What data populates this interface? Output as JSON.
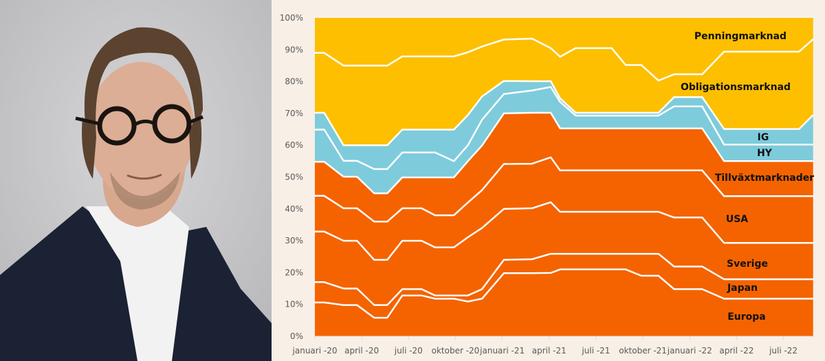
{
  "photo": {
    "alt": "portrait"
  },
  "chart_data": {
    "type": "area",
    "stacked": true,
    "title": "",
    "xlabel": "",
    "ylabel": "",
    "ylim": [
      0,
      100
    ],
    "y_ticks": [
      "0%",
      "10%",
      "20%",
      "30%",
      "40%",
      "50%",
      "60%",
      "70%",
      "80%",
      "90%",
      "100%"
    ],
    "x_ticks": [
      {
        "date": "2020-01-01",
        "label": "januari -20"
      },
      {
        "date": "2020-04-01",
        "label": "april -20"
      },
      {
        "date": "2020-07-01",
        "label": "juli -20"
      },
      {
        "date": "2020-10-01",
        "label": "oktober -20"
      },
      {
        "date": "2021-01-01",
        "label": "januari -21"
      },
      {
        "date": "2021-04-01",
        "label": "april -21"
      },
      {
        "date": "2021-07-01",
        "label": "juli -21"
      },
      {
        "date": "2021-10-01",
        "label": "oktober -21"
      },
      {
        "date": "2022-01-01",
        "label": "januari -22"
      },
      {
        "date": "2022-04-01",
        "label": "april -22"
      },
      {
        "date": "2022-07-01",
        "label": "juli -22"
      }
    ],
    "x_range": [
      "2020-01-01",
      "2022-09-01"
    ],
    "grid": false,
    "legend": "inline labels on right",
    "x": [
      "2020-01-01",
      "2020-01-19",
      "2020-02-26",
      "2020-03-22",
      "2020-04-25",
      "2020-05-20",
      "2020-06-19",
      "2020-07-26",
      "2020-08-22",
      "2020-09-28",
      "2020-10-25",
      "2020-11-22",
      "2021-01-04",
      "2021-02-28",
      "2021-04-04",
      "2021-04-22",
      "2021-05-22",
      "2021-08-01",
      "2021-08-28",
      "2021-09-28",
      "2021-11-01",
      "2021-12-01",
      "2022-01-25",
      "2022-03-07",
      "2022-08-01",
      "2022-08-28"
    ],
    "series": [
      {
        "name": "Europa",
        "color": "#f46300",
        "values": [
          10.6,
          10.6,
          9.8,
          9.8,
          5.8,
          5.8,
          12.8,
          12.8,
          11.8,
          11.8,
          10.9,
          11.8,
          19.8,
          19.8,
          19.9,
          21,
          21,
          21,
          21,
          19,
          19,
          14.8,
          14.8,
          11.8,
          11.8,
          11.8
        ]
      },
      {
        "name": "Japan",
        "color": "#f46300",
        "values": [
          6.4,
          6.4,
          5.2,
          5.2,
          4,
          4,
          2,
          2,
          1,
          1,
          1.9,
          3,
          4.2,
          4.4,
          6,
          4.9,
          4.9,
          4.9,
          4.9,
          6.9,
          6.9,
          7.1,
          7.1,
          6.1,
          6.1,
          6.1
        ]
      },
      {
        "name": "Sverige",
        "color": "#f46300",
        "values": [
          15.9,
          15.9,
          15,
          15,
          14.2,
          14.2,
          15.2,
          15.2,
          15.1,
          15.1,
          18.3,
          19.2,
          16,
          16,
          16.2,
          13.2,
          13.2,
          13.2,
          13.2,
          13.2,
          13.2,
          15.4,
          15.4,
          11.4,
          11.4,
          11.4
        ]
      },
      {
        "name": "USA",
        "color": "#f46300",
        "values": [
          11.2,
          11.2,
          10.2,
          10.2,
          12,
          12,
          10.2,
          10.2,
          10.1,
          10.1,
          10.9,
          11.9,
          14.1,
          14,
          14.1,
          13,
          13,
          13,
          13,
          13,
          13,
          14.8,
          14.8,
          14.7,
          14.7,
          14.7
        ]
      },
      {
        "name": "Tillväxtmarknader",
        "color": "#f46300",
        "values": [
          10.7,
          10.7,
          9.9,
          9.9,
          8.9,
          8.9,
          9.7,
          9.7,
          11.9,
          11.9,
          13,
          14,
          15.9,
          16,
          14,
          13.2,
          13.2,
          13.2,
          13.2,
          13.2,
          13.2,
          13.2,
          13.2,
          11,
          11,
          11
        ]
      },
      {
        "name": "HY",
        "color": "#7ecbdc",
        "values": [
          10.1,
          10.1,
          5,
          5,
          7.6,
          7.6,
          7.8,
          7.8,
          7.8,
          5.1,
          5,
          8.1,
          6.1,
          7,
          8.1,
          8.3,
          4,
          4,
          4,
          4,
          4,
          6.9,
          6.9,
          5.2,
          5.2,
          5.2
        ]
      },
      {
        "name": "IG",
        "color": "#7ecbdc",
        "values": [
          5.3,
          5.3,
          4.9,
          4.9,
          7.5,
          7.5,
          7.2,
          7.2,
          7.2,
          9.9,
          9.5,
          7.3,
          4.1,
          2.9,
          1.8,
          1.1,
          0.9,
          0.9,
          0.9,
          0.9,
          0.9,
          2.9,
          2.9,
          4.9,
          4.9,
          9.3
        ]
      },
      {
        "name": "Obligationsmarknad",
        "color": "#fdbf00",
        "values": [
          18.8,
          18.8,
          25,
          25,
          25,
          25,
          23,
          23,
          23,
          23,
          19.7,
          15.7,
          13,
          13.4,
          10.4,
          13.1,
          20.3,
          20.3,
          15,
          15,
          10.1,
          7.2,
          7.2,
          24.3,
          24.3,
          23.8
        ]
      },
      {
        "name": "Penningmarknad",
        "color": "#fdbf00",
        "values": [
          11,
          11,
          15,
          15,
          15,
          15,
          12.1,
          12.1,
          12.1,
          12.1,
          10.8,
          9,
          6.8,
          6.5,
          9.5,
          12.2,
          9.5,
          9.5,
          14.8,
          14.8,
          19.7,
          17.7,
          17.7,
          10.6,
          10.6,
          6.7
        ]
      }
    ]
  }
}
